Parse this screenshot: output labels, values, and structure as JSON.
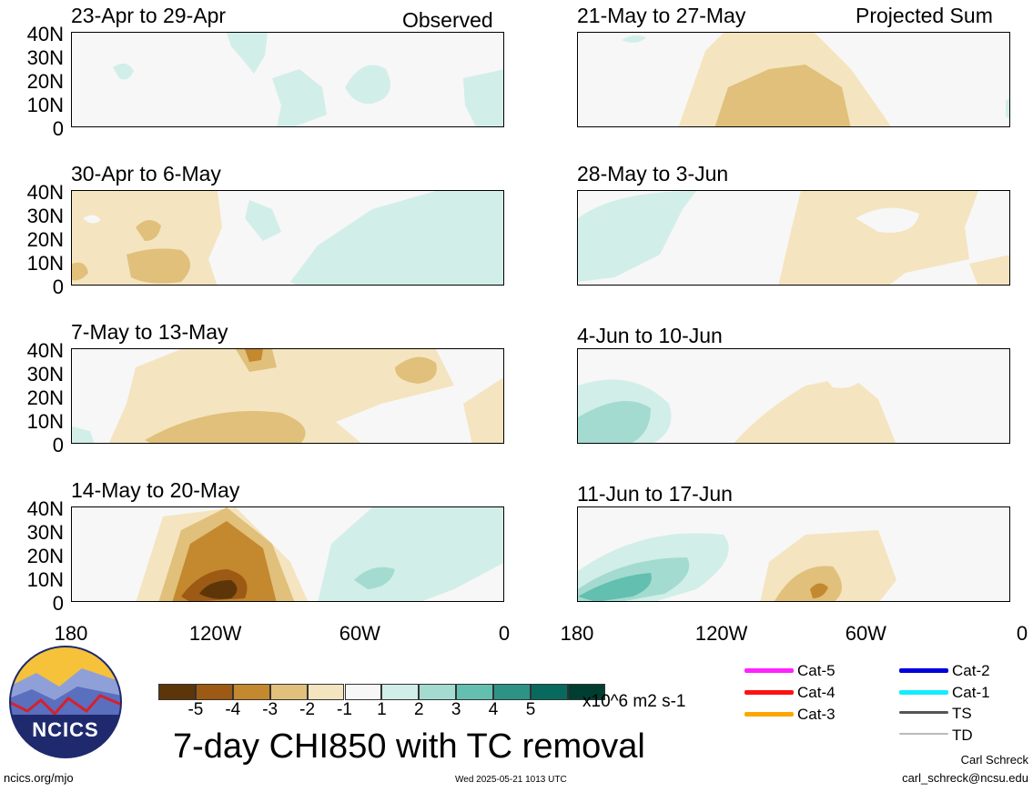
{
  "panels": [
    {
      "title": "23-Apr to 29-Apr",
      "side": "left",
      "row": 0
    },
    {
      "title": "30-Apr to 6-May",
      "side": "left",
      "row": 1
    },
    {
      "title": "7-May to 13-May",
      "side": "left",
      "row": 2
    },
    {
      "title": "14-May to 20-May",
      "side": "left",
      "row": 3
    },
    {
      "title": "21-May to 27-May",
      "side": "right",
      "row": 0
    },
    {
      "title": "28-May to 3-Jun",
      "side": "right",
      "row": 1
    },
    {
      "title": "4-Jun to 10-Jun",
      "side": "right",
      "row": 2
    },
    {
      "title": "11-Jun to 17-Jun",
      "side": "right",
      "row": 3
    }
  ],
  "column_labels": {
    "left": "Observed",
    "right": "Projected Sum"
  },
  "lat_ticks": [
    "40N",
    "30N",
    "20N",
    "10N",
    "0"
  ],
  "lon_ticks": [
    "180",
    "120W",
    "60W",
    "0"
  ],
  "colorbar": {
    "colors": [
      "#5c3609",
      "#9c5a14",
      "#c4882f",
      "#e0c07a",
      "#f4e4c0",
      "#f7f7f7",
      "#d2eee8",
      "#a3dbd0",
      "#63bfb0",
      "#2d9387",
      "#086a5e",
      "#013e32"
    ],
    "labels": [
      "-5",
      "-4",
      "-3",
      "-2",
      "-1",
      "1",
      "2",
      "3",
      "4",
      "5"
    ],
    "units": "x10^6 m2 s-1"
  },
  "tc_legend": [
    {
      "label": "Cat-5",
      "color": "#ff22ff"
    },
    {
      "label": "Cat-4",
      "color": "#ff1111"
    },
    {
      "label": "Cat-3",
      "color": "#ffa500"
    },
    {
      "label": "Cat-2",
      "color": "#0000dd"
    },
    {
      "label": "Cat-1",
      "color": "#11eeff"
    },
    {
      "label": "TS",
      "color": "#555555"
    },
    {
      "label": "TD",
      "color": "#bbbbbb"
    }
  ],
  "main_title": "7-day CHI850 with TC removal",
  "logo_text": "NCICS",
  "footer": {
    "url": "ncics.org/mjo",
    "timestamp": "Wed 2025-05-21 1013 UTC",
    "author": "Carl Schreck",
    "email": "carl_schreck@ncsu.edu"
  }
}
